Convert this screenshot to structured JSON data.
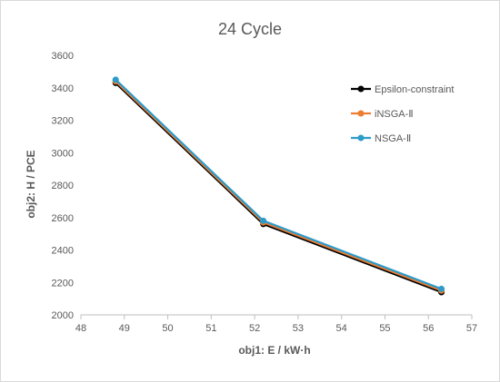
{
  "chart_data": {
    "type": "line",
    "title": "24 Cycle",
    "xlabel": "obj1: E / kW·h",
    "ylabel": "obj2: H / PCE",
    "xlim": [
      48,
      57
    ],
    "ylim": [
      2000,
      3600
    ],
    "xticks": [
      48,
      49,
      50,
      51,
      52,
      53,
      54,
      55,
      56,
      57
    ],
    "yticks": [
      2000,
      2200,
      2400,
      2600,
      2800,
      3000,
      3200,
      3400,
      3600
    ],
    "grid": false,
    "legend_position": "right",
    "series": [
      {
        "name": "Epsilon-constraint",
        "color": "#000000",
        "x": [
          48.8,
          52.2,
          56.3
        ],
        "y": [
          3430,
          2560,
          2140
        ]
      },
      {
        "name": "iNSGA-Ⅱ",
        "color": "#ED7D31",
        "x": [
          48.8,
          52.2,
          56.3
        ],
        "y": [
          3440,
          2570,
          2150
        ]
      },
      {
        "name": "NSGA-Ⅱ",
        "color": "#2E9BC9",
        "x": [
          48.8,
          52.2,
          56.3
        ],
        "y": [
          3450,
          2580,
          2160
        ]
      }
    ]
  }
}
